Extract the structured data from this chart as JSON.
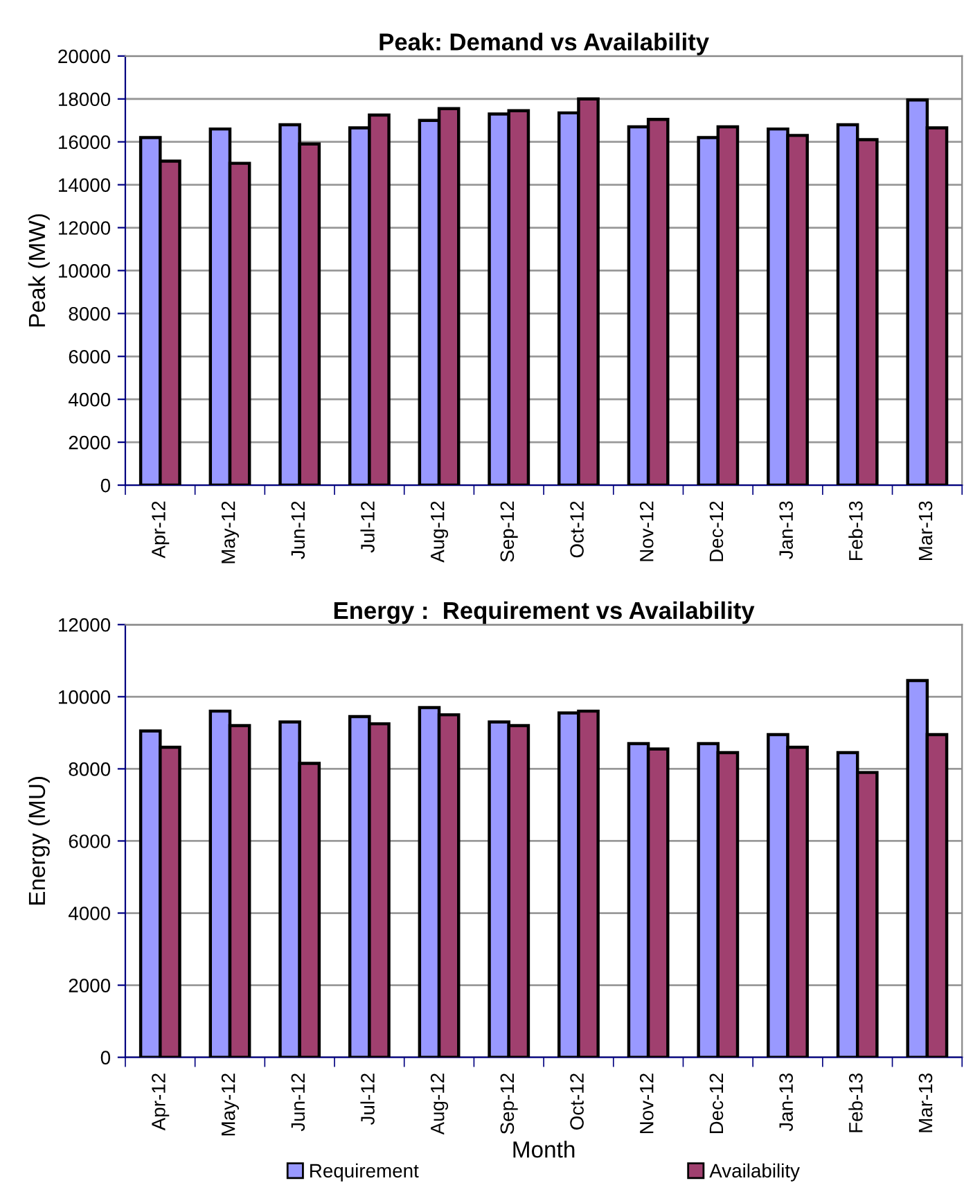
{
  "chart_data": [
    {
      "type": "bar",
      "title": "Peak: Demand vs Availability",
      "ylabel": "Peak (MW)",
      "categories": [
        "Apr-12",
        "May-12",
        "Jun-12",
        "Jul-12",
        "Aug-12",
        "Sep-12",
        "Oct-12",
        "Nov-12",
        "Dec-12",
        "Jan-13",
        "Feb-13",
        "Mar-13"
      ],
      "series": [
        {
          "color": "#9999ff",
          "values": [
            16200,
            16600,
            16800,
            16650,
            17000,
            17300,
            17350,
            16700,
            16200,
            16600,
            16800,
            17950
          ]
        },
        {
          "color": "#a0406f",
          "values": [
            15100,
            15000,
            15900,
            17250,
            17550,
            17450,
            18000,
            17050,
            16700,
            16300,
            16100,
            16650
          ]
        }
      ],
      "ylim": [
        0,
        20000
      ],
      "yticks": [
        0,
        2000,
        4000,
        6000,
        8000,
        10000,
        12000,
        14000,
        16000,
        18000,
        20000
      ],
      "grid": "y"
    },
    {
      "type": "bar",
      "title": "Energy :  Requirement vs Availability",
      "xlabel": "Month",
      "ylabel": "Energy (MU)",
      "categories": [
        "Apr-12",
        "May-12",
        "Jun-12",
        "Jul-12",
        "Aug-12",
        "Sep-12",
        "Oct-12",
        "Nov-12",
        "Dec-12",
        "Jan-13",
        "Feb-13",
        "Mar-13"
      ],
      "series": [
        {
          "name": "Requirement",
          "color": "#9999ff",
          "values": [
            9050,
            9600,
            9300,
            9450,
            9700,
            9300,
            9550,
            8700,
            8700,
            8950,
            8450,
            10450
          ]
        },
        {
          "name": "Availability",
          "color": "#a0406f",
          "values": [
            8600,
            9200,
            8150,
            9250,
            9500,
            9200,
            9600,
            8550,
            8450,
            8600,
            7900,
            8950
          ]
        }
      ],
      "ylim": [
        0,
        12000
      ],
      "yticks": [
        0,
        2000,
        4000,
        6000,
        8000,
        10000,
        12000
      ],
      "grid": "y",
      "legend": "bottom"
    }
  ]
}
